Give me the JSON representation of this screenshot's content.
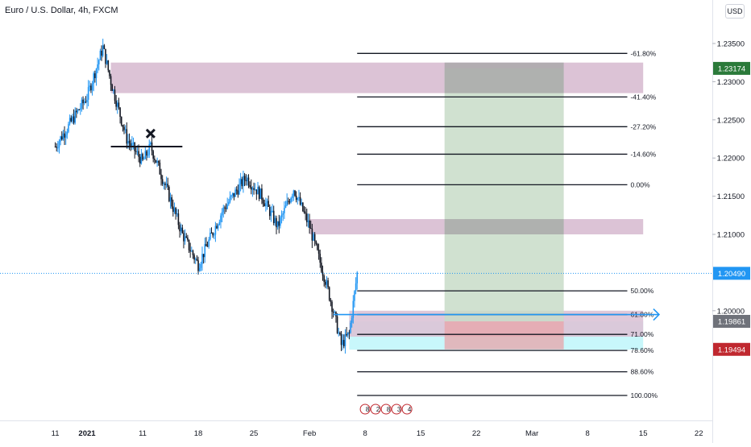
{
  "header": {
    "symbol_title": "Euro / U.S. Dollar, 4h, FXCM",
    "currency_button": "USD"
  },
  "colors": {
    "candle_up": "#2196f3",
    "candle_down": "#131722",
    "supply_zone": "#dcc3d6",
    "profit_zone": "#c8dcc8",
    "loss_zone": "#e8a3a8",
    "entry_zone": "#c8f7fb",
    "price_line": "#2196f3",
    "label_current": "#2196f3",
    "label_green": "#2b7a3a",
    "label_gray": "#6f727a",
    "label_red": "#c0282f"
  },
  "chart_data": {
    "type": "candlestick",
    "title": "Euro / U.S. Dollar, 4h, FXCM",
    "y_range": [
      1.1925,
      1.2375
    ],
    "y_ticks": [
      "1.23500",
      "1.23000",
      "1.22500",
      "1.22000",
      "1.21500",
      "1.21000",
      "1.20000"
    ],
    "x_ticks": [
      {
        "label": "11",
        "date": "2020-12-31"
      },
      {
        "label": "2021",
        "date": "2021-01-04"
      },
      {
        "label": "11",
        "date": "2021-01-11"
      },
      {
        "label": "18",
        "date": "2021-01-18"
      },
      {
        "label": "25",
        "date": "2021-01-25"
      },
      {
        "label": "Feb",
        "date": "2021-02-01"
      },
      {
        "label": "8",
        "date": "2021-02-08"
      },
      {
        "label": "15",
        "date": "2021-02-15"
      },
      {
        "label": "22",
        "date": "2021-02-22"
      },
      {
        "label": "Mar",
        "date": "2021-03-01"
      },
      {
        "label": "8",
        "date": "2021-03-08"
      },
      {
        "label": "15",
        "date": "2021-03-15"
      },
      {
        "label": "22",
        "date": "2021-03-22"
      }
    ],
    "price_key_points": [
      {
        "date": "2020-12-31",
        "price": 1.2215
      },
      {
        "date": "2021-01-04",
        "price": 1.228
      },
      {
        "date": "2021-01-06",
        "price": 1.2345
      },
      {
        "date": "2021-01-07",
        "price": 1.23
      },
      {
        "date": "2021-01-09",
        "price": 1.2225
      },
      {
        "date": "2021-01-11",
        "price": 1.2195
      },
      {
        "date": "2021-01-12",
        "price": 1.2215
      },
      {
        "date": "2021-01-14",
        "price": 1.216
      },
      {
        "date": "2021-01-16",
        "price": 1.21
      },
      {
        "date": "2021-01-18",
        "price": 1.206
      },
      {
        "date": "2021-01-21",
        "price": 1.213
      },
      {
        "date": "2021-01-24",
        "price": 1.2175
      },
      {
        "date": "2021-01-26",
        "price": 1.215
      },
      {
        "date": "2021-01-28",
        "price": 1.211
      },
      {
        "date": "2021-01-30",
        "price": 1.216
      },
      {
        "date": "2021-02-01",
        "price": 1.211
      },
      {
        "date": "2021-02-03",
        "price": 1.204
      },
      {
        "date": "2021-02-04",
        "price": 1.2
      },
      {
        "date": "2021-02-05",
        "price": 1.1955
      },
      {
        "date": "2021-02-06",
        "price": 1.197
      },
      {
        "date": "2021-02-07",
        "price": 1.2049
      }
    ],
    "zones": [
      {
        "name": "supply-zone-upper",
        "start": "2021-01-07",
        "end": "2021-03-15",
        "top": 1.2325,
        "bottom": 1.2285
      },
      {
        "name": "supply-zone-mid",
        "start": "2021-02-01",
        "end": "2021-03-15",
        "top": 1.212,
        "bottom": 1.21
      },
      {
        "name": "entry-zone",
        "start": "2021-02-06",
        "end": "2021-03-15",
        "top": 1.19861,
        "bottom": 1.1949
      }
    ],
    "fib_levels": [
      {
        "label": "-61.80%",
        "price": 1.2337
      },
      {
        "label": "-41.40%",
        "price": 1.228
      },
      {
        "label": "-27.20%",
        "price": 1.2241
      },
      {
        "label": "-14.60%",
        "price": 1.2205
      },
      {
        "label": "0.00%",
        "price": 1.2165
      },
      {
        "label": "50.00%",
        "price": 1.2026
      },
      {
        "label": "61.80%",
        "price": 1.1995
      },
      {
        "label": "71.00%",
        "price": 1.1969
      },
      {
        "label": "78.60%",
        "price": 1.1948
      },
      {
        "label": "88.60%",
        "price": 1.192
      },
      {
        "label": "100.00%",
        "price": 1.1889
      }
    ],
    "position": {
      "start": "2021-02-18",
      "end": "2021-03-05",
      "entry": 1.19861,
      "target": 1.23174,
      "stop": 1.19494
    },
    "current_price": 1.2049,
    "price_labels": [
      {
        "value": "1.23174",
        "price": 1.23174,
        "color": "#2b7a3a"
      },
      {
        "value": "1.20490",
        "price": 1.2049,
        "color": "#2196f3"
      },
      {
        "value": "1.19861",
        "price": 1.19861,
        "color": "#6f727a"
      },
      {
        "value": "1.19494",
        "price": 1.19494,
        "color": "#c0282f"
      }
    ],
    "event_markers": [
      "8",
      "2",
      "8",
      "3",
      "4"
    ]
  }
}
